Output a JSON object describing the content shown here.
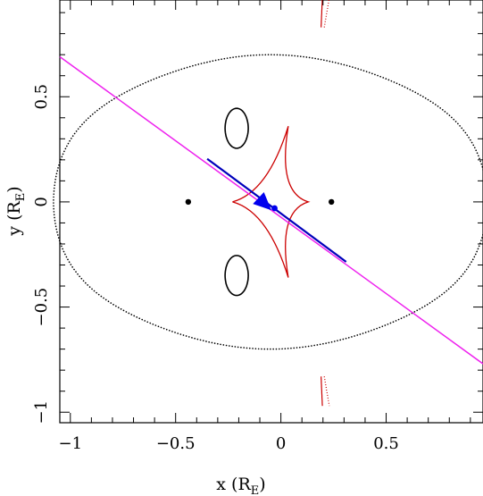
{
  "chart_data": {
    "type": "scatter",
    "title": "",
    "xlabel": "x (R",
    "xlabel_sub": "E",
    "xlabel_close": ")",
    "ylabel": "y (R",
    "ylabel_sub": "E",
    "ylabel_close": ")",
    "xlim": [
      -1.05,
      0.96
    ],
    "ylim": [
      -1.05,
      0.96
    ],
    "xticks": [
      {
        "value": -1.0,
        "label": "−1"
      },
      {
        "value": -0.5,
        "label": "−0.5"
      },
      {
        "value": 0.0,
        "label": "0"
      },
      {
        "value": 0.5,
        "label": "0.5"
      }
    ],
    "yticks": [
      {
        "value": -1.0,
        "label": "−1"
      },
      {
        "value": -0.5,
        "label": "−0.5"
      },
      {
        "value": 0.0,
        "label": "0"
      },
      {
        "value": 0.5,
        "label": "0.5"
      }
    ],
    "minor_tick_step": 0.1,
    "grid": false,
    "lenses": [
      {
        "x": -0.44,
        "y": 0.0
      },
      {
        "x": 0.24,
        "y": 0.0
      }
    ],
    "source_trajectory": {
      "color": "#ee22ee",
      "points": [
        [
          -1.05,
          0.69
        ],
        [
          0.96,
          -0.77
        ]
      ]
    },
    "trajectory_highlight": {
      "color": "#0000bb",
      "points": [
        [
          -0.35,
          0.205
        ],
        [
          0.31,
          -0.285
        ]
      ]
    },
    "source": {
      "x": -0.03,
      "y": -0.03,
      "color": "#0000ee"
    },
    "arrow": {
      "tail": [
        -0.14,
        0.05
      ],
      "head": [
        -0.045,
        -0.04
      ],
      "color": "#0000ee"
    },
    "caustic": {
      "color": "#cc0000",
      "cusps": [
        [
          -0.23,
          0.0
        ],
        [
          0.13,
          0.0
        ],
        [
          0.035,
          0.36
        ],
        [
          0.035,
          -0.36
        ]
      ]
    },
    "planetary_caustics": [
      {
        "center_x": 0.2,
        "y_start": 0.83,
        "y_end": 0.97,
        "dx": 0.03,
        "color": "#cc0000"
      },
      {
        "center_x": 0.2,
        "y_start": -0.83,
        "y_end": -0.97,
        "dx": 0.03,
        "color": "#cc0000"
      }
    ],
    "critical_curves": {
      "outer": {
        "color": "#000000"
      },
      "small_loops": [
        {
          "cx": -0.21,
          "cy": 0.35,
          "rx": 0.055,
          "ry": 0.095
        },
        {
          "cx": -0.21,
          "cy": -0.35,
          "rx": 0.055,
          "ry": 0.095
        }
      ]
    }
  }
}
